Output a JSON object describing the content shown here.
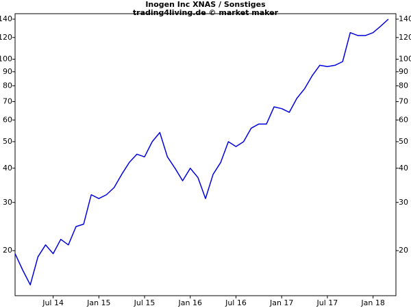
{
  "chart_data": {
    "type": "line",
    "title": "Inogen Inc XNAS / Sonstiges",
    "subtitle": "trading4living.de © market maker",
    "x": [
      "2014-02",
      "2014-03",
      "2014-04",
      "2014-05",
      "2014-06",
      "2014-07",
      "2014-08",
      "2014-09",
      "2014-10",
      "2014-11",
      "2014-12",
      "2015-01",
      "2015-02",
      "2015-03",
      "2015-04",
      "2015-05",
      "2015-06",
      "2015-07",
      "2015-08",
      "2015-09",
      "2015-10",
      "2015-11",
      "2015-12",
      "2016-01",
      "2016-02",
      "2016-03",
      "2016-04",
      "2016-05",
      "2016-06",
      "2016-07",
      "2016-08",
      "2016-09",
      "2016-10",
      "2016-11",
      "2016-12",
      "2017-01",
      "2017-02",
      "2017-03",
      "2017-04",
      "2017-05",
      "2017-06",
      "2017-07",
      "2017-08",
      "2017-09",
      "2017-10",
      "2017-11",
      "2017-12",
      "2018-01",
      "2018-02",
      "2018-03"
    ],
    "values": [
      19.5,
      17,
      15,
      19,
      21,
      19.5,
      22,
      21,
      24.5,
      25,
      32,
      31,
      32,
      34,
      38,
      42,
      45,
      44,
      50,
      54,
      44,
      40,
      36,
      40,
      37,
      31,
      38,
      42,
      50,
      48,
      50,
      56,
      58,
      58,
      67,
      66,
      64,
      72,
      78,
      87,
      95,
      94,
      95,
      98,
      125,
      122,
      122,
      125,
      132,
      140
    ],
    "color": "#0000dd",
    "log_scale": true,
    "xlim": [
      "2014-02",
      "2018-04"
    ],
    "xticks": [
      {
        "value": "2014-07",
        "label": "Jul 14"
      },
      {
        "value": "2015-01",
        "label": "Jan 15"
      },
      {
        "value": "2015-07",
        "label": "Jul 15"
      },
      {
        "value": "2016-01",
        "label": "Jan 16"
      },
      {
        "value": "2016-07",
        "label": "Jul 16"
      },
      {
        "value": "2017-01",
        "label": "Jan 17"
      },
      {
        "value": "2017-07",
        "label": "Jul 17"
      },
      {
        "value": "2018-01",
        "label": "Jan 18"
      }
    ],
    "ylim": [
      13.7,
      146.6
    ],
    "yticks": [
      20,
      30,
      40,
      50,
      60,
      70,
      80,
      90,
      100,
      120,
      140
    ]
  }
}
